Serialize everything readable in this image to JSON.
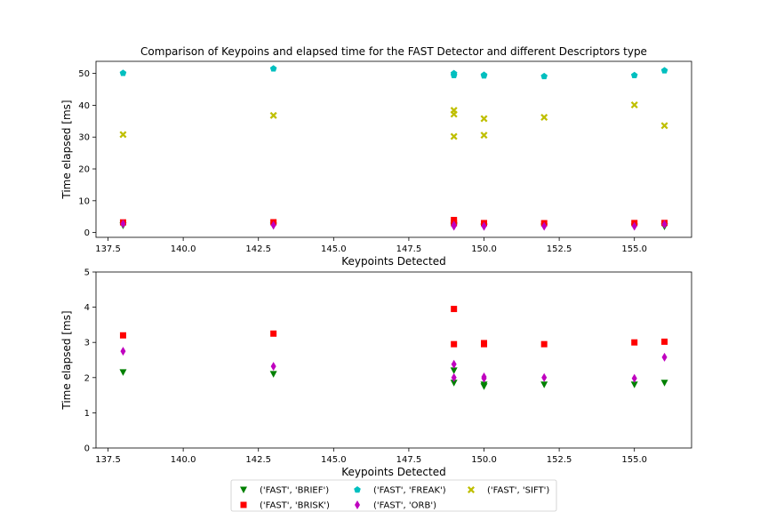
{
  "chart_data": [
    {
      "type": "scatter",
      "title": "Comparison of Keypoins and elapsed time for the FAST Detector and different  Descriptors type",
      "xlabel": "Keypoints Detected",
      "ylabel": "Time elapsed [ms]",
      "xlim": [
        137.1,
        156.9
      ],
      "ylim": [
        -1.5,
        53.8
      ],
      "xticks": [
        "137.5",
        "140.0",
        "142.5",
        "145.0",
        "147.5",
        "150.0",
        "152.5",
        "155.0"
      ],
      "yticks": [
        "0",
        "10",
        "20",
        "30",
        "40",
        "50"
      ],
      "series": [
        {
          "name": "('FAST', 'BRIEF')",
          "color": "#008000",
          "marker": "triangle-down",
          "x": [
            138,
            143,
            149,
            149,
            150,
            150,
            152,
            155,
            156
          ],
          "y": [
            2.15,
            2.1,
            1.85,
            2.2,
            1.75,
            1.8,
            1.8,
            1.8,
            1.85
          ]
        },
        {
          "name": "('FAST', 'BRISK')",
          "color": "#ff0000",
          "marker": "square",
          "x": [
            138,
            143,
            149,
            149,
            150,
            150,
            152,
            155,
            156
          ],
          "y": [
            3.2,
            3.25,
            3.95,
            2.95,
            2.95,
            2.98,
            2.95,
            3.0,
            3.02
          ]
        },
        {
          "name": "('FAST', 'FREAK')",
          "color": "#00bfbf",
          "marker": "pentagon",
          "x": [
            138,
            143,
            149,
            149,
            150,
            150,
            152,
            155,
            156
          ],
          "y": [
            50.1,
            51.5,
            49.4,
            50.0,
            49.3,
            49.5,
            49.1,
            49.4,
            50.9
          ]
        },
        {
          "name": "('FAST', 'ORB')",
          "color": "#bf00bf",
          "marker": "thin-diamond",
          "x": [
            138,
            143,
            149,
            149,
            150,
            150,
            152,
            155,
            156
          ],
          "y": [
            2.75,
            2.32,
            2.0,
            2.38,
            1.98,
            2.02,
            2.0,
            1.98,
            2.58
          ]
        },
        {
          "name": "('FAST', 'SIFT')",
          "color": "#bfbf00",
          "marker": "x-filled",
          "x": [
            138,
            143,
            149,
            149,
            149,
            150,
            150,
            152,
            155,
            156
          ],
          "y": [
            30.8,
            36.8,
            30.2,
            37.2,
            38.4,
            30.6,
            35.8,
            36.2,
            40.1,
            33.6
          ]
        }
      ]
    },
    {
      "type": "scatter",
      "title": "",
      "xlabel": "Keypoints Detected",
      "ylabel": "Time elapsed [ms]",
      "xlim": [
        137.1,
        156.9
      ],
      "ylim": [
        0,
        5
      ],
      "xticks": [
        "137.5",
        "140.0",
        "142.5",
        "145.0",
        "147.5",
        "150.0",
        "152.5",
        "155.0"
      ],
      "yticks": [
        "0",
        "1",
        "2",
        "3",
        "4",
        "5"
      ],
      "series": [
        {
          "name": "('FAST', 'BRIEF')",
          "color": "#008000",
          "marker": "triangle-down",
          "x": [
            138,
            143,
            149,
            149,
            150,
            150,
            152,
            155,
            156
          ],
          "y": [
            2.15,
            2.1,
            1.85,
            2.2,
            1.75,
            1.8,
            1.8,
            1.8,
            1.85
          ]
        },
        {
          "name": "('FAST', 'BRISK')",
          "color": "#ff0000",
          "marker": "square",
          "x": [
            138,
            143,
            149,
            149,
            150,
            150,
            152,
            155,
            156
          ],
          "y": [
            3.2,
            3.25,
            3.95,
            2.95,
            2.95,
            2.98,
            2.95,
            3.0,
            3.02
          ]
        },
        {
          "name": "('FAST', 'ORB')",
          "color": "#bf00bf",
          "marker": "thin-diamond",
          "x": [
            138,
            143,
            149,
            149,
            150,
            150,
            152,
            155,
            156
          ],
          "y": [
            2.75,
            2.32,
            2.0,
            2.38,
            1.98,
            2.02,
            2.0,
            1.98,
            2.58
          ]
        }
      ]
    }
  ],
  "legend": {
    "placement": "lower-center",
    "entries": [
      {
        "label": "('FAST', 'BRIEF')",
        "color": "#008000",
        "marker": "triangle-down"
      },
      {
        "label": "('FAST', 'BRISK')",
        "color": "#ff0000",
        "marker": "square"
      },
      {
        "label": "('FAST', 'FREAK')",
        "color": "#00bfbf",
        "marker": "pentagon"
      },
      {
        "label": "('FAST', 'ORB')",
        "color": "#bf00bf",
        "marker": "thin-diamond"
      },
      {
        "label": "('FAST', 'SIFT')",
        "color": "#bfbf00",
        "marker": "x-filled"
      }
    ]
  }
}
